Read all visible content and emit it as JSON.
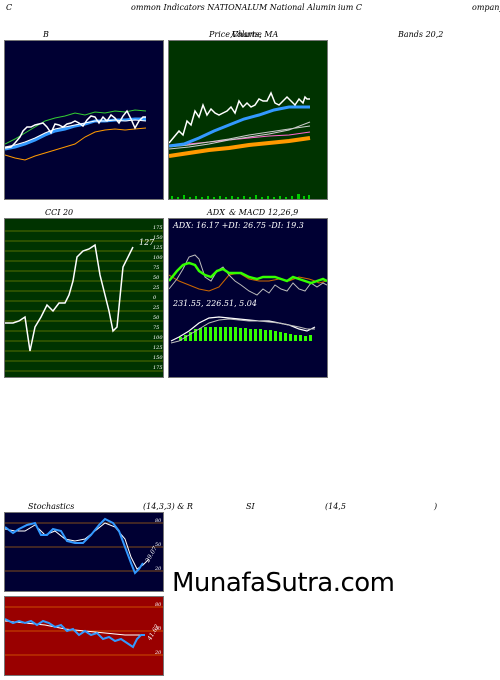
{
  "header": {
    "c1": "C",
    "c2": "ommon  Indicators NATIONALUM National Alumin",
    "c3": "ium C",
    "c4": "ompany"
  },
  "titles": {
    "bands_b": "B",
    "price_a": "Price,",
    "price_b": "Volume",
    "price_c": "Charts, MA",
    "bands_r": "Bands 20,2",
    "cci": "CCI 20",
    "adx_a": "ADX",
    "adx_b": "& MACD 12,26,9",
    "stoch_a": "Stochastics",
    "stoch_b": "(14,3,3) & R",
    "stoch_c": "SI",
    "stoch_d": "(14,5",
    "stoch_e": ")"
  },
  "cci": {
    "value_label": "127",
    "levels": [
      "175",
      "150",
      "125",
      "100",
      "75",
      "50",
      "25",
      "0",
      "25",
      "50",
      "75",
      "100",
      "125",
      "150",
      "175"
    ]
  },
  "adx": {
    "readout": "ADX: 16.17  +DI: 26.75 -DI: 19.3"
  },
  "macd": {
    "readout": "231.55,  226.51,  5.04"
  },
  "stoch": {
    "levels": [
      "80",
      "50",
      "20"
    ],
    "value_label": "29.07"
  },
  "rsi": {
    "levels": [
      "80",
      "50",
      "20"
    ],
    "value_label": "41.62"
  },
  "watermark": "MunafaSutra.com",
  "colors": {
    "navy": "#000033",
    "green_bg": "#003300",
    "red_bg": "#990000",
    "blue": "#3399ff",
    "orange": "#ff9900",
    "lime": "#33ff00"
  }
}
